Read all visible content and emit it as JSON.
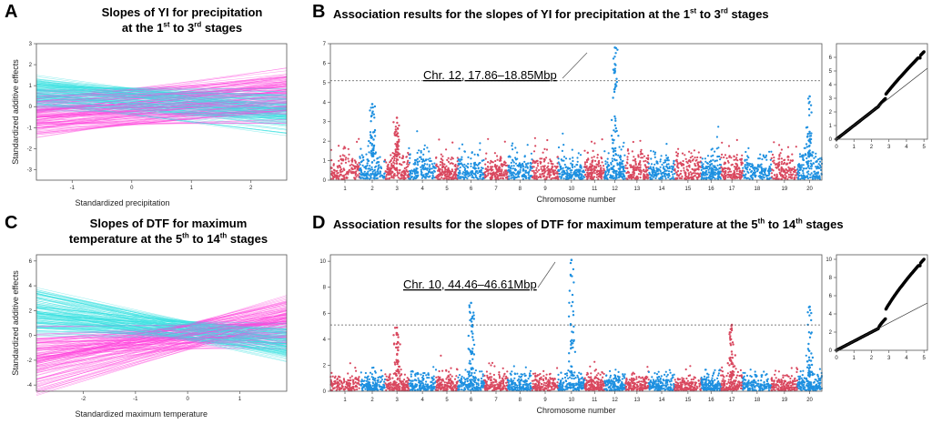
{
  "panels": {
    "A": {
      "letter": "A",
      "title_line1": "Slopes of YI for precipitation",
      "title_line2_pre": "at the 1",
      "title_line2_sup1": "st",
      "title_line2_mid": " to 3",
      "title_line2_sup2": "rd",
      "title_line2_post": " stages"
    },
    "B": {
      "letter": "B",
      "title_pre": "Association results for the slopes of YI for precipitation at the 1",
      "title_sup1": "st",
      "title_mid": " to 3",
      "title_sup2": "rd",
      "title_post": " stages"
    },
    "C": {
      "letter": "C",
      "title_line1": "Slopes of DTF for maximum",
      "title_line2_pre": "temperature at the 5",
      "title_line2_sup1": "th",
      "title_line2_mid": " to 14",
      "title_line2_sup2": "th",
      "title_line2_post": " stages"
    },
    "D": {
      "letter": "D",
      "title_pre": "Association results for the slopes of DTF for maximum temperature at the 5",
      "title_sup1": "th",
      "title_mid": " to 14",
      "title_sup2": "th",
      "title_post": " stages"
    }
  },
  "colors": {
    "red": "#d9485f",
    "blue": "#1e90e0",
    "pink": "#ff44dd",
    "cyan": "#33e0e0",
    "black": "#000000"
  },
  "chart_data": [
    {
      "id": "A",
      "type": "line",
      "title": "Slopes of YI for precipitation at the 1st to 3rd stages",
      "xlabel": "Standardized precipitation",
      "ylabel": "Standardized additive effects",
      "xlim": [
        -1.6,
        2.6
      ],
      "ylim": [
        -3.5,
        3
      ],
      "xticks": [
        -1,
        0,
        1,
        2
      ],
      "yticks": [
        -3,
        -2,
        -1,
        0,
        1,
        2,
        3
      ],
      "series": [
        {
          "name": "positive slopes",
          "color": "#ff44dd",
          "intercept_range": [
            -0.9,
            0.9
          ],
          "slope_range": [
            0.0,
            0.45
          ]
        },
        {
          "name": "negative slopes",
          "color": "#33e0e0",
          "intercept_range": [
            -0.4,
            0.9
          ],
          "slope_range": [
            -0.4,
            0.0
          ]
        }
      ]
    },
    {
      "id": "C",
      "type": "line",
      "title": "Slopes of DTF for maximum temperature at the 5th to 14th stages",
      "xlabel": "Standardized maximum temperature",
      "ylabel": "Standardized additive effects",
      "xlim": [
        -2.9,
        1.9
      ],
      "ylim": [
        -4.5,
        6.5
      ],
      "xticks": [
        -2,
        -1,
        0,
        1
      ],
      "yticks": [
        -4,
        -2,
        0,
        2,
        4,
        6
      ],
      "series": [
        {
          "name": "positive slopes",
          "color": "#ff44dd",
          "intercept_range": [
            -1.2,
            1.0
          ],
          "slope_range": [
            0.0,
            1.3
          ]
        },
        {
          "name": "negative slopes",
          "color": "#33e0e0",
          "intercept_range": [
            -0.4,
            1.2
          ],
          "slope_range": [
            -1.0,
            0.0
          ]
        }
      ]
    },
    {
      "id": "B",
      "type": "scatter",
      "subtype": "manhattan",
      "title": "Association results for the slopes of YI for precipitation at the 1st to 3rd stages",
      "xlabel": "Chromosome number",
      "ylabel": "",
      "ylim": [
        0,
        7
      ],
      "yticks": [
        0,
        1,
        2,
        3,
        4,
        5,
        6,
        7
      ],
      "threshold": 5.1,
      "chromosomes": [
        "1",
        "2",
        "3",
        "4",
        "5",
        "6",
        "7",
        "8",
        "9",
        "10",
        "11",
        "12",
        "13",
        "14",
        "15",
        "16",
        "17",
        "18",
        "19",
        "20"
      ],
      "chrom_sizes": [
        56,
        49,
        46,
        52,
        42,
        51,
        45,
        47,
        50,
        51,
        38,
        40,
        45,
        50,
        51,
        38,
        42,
        55,
        50,
        47
      ],
      "peaks": [
        {
          "chr": 12,
          "max": 6.8
        },
        {
          "chr": 2,
          "max": 3.9
        },
        {
          "chr": 3,
          "max": 3.2
        },
        {
          "chr": 20,
          "max": 4.3
        }
      ],
      "annotation": "Chr. 12, 17.86–18.85Mbp"
    },
    {
      "id": "B-qq",
      "type": "scatter",
      "subtype": "qq",
      "xlim": [
        0,
        5.2
      ],
      "ylim": [
        0,
        7
      ],
      "xticks": [
        0,
        1,
        2,
        3,
        4,
        5
      ],
      "yticks": [
        0,
        1,
        2,
        3,
        4,
        5,
        6
      ]
    },
    {
      "id": "D",
      "type": "scatter",
      "subtype": "manhattan",
      "title": "Association results for the slopes of DTF for maximum temperature at the 5th to 14th stages",
      "xlabel": "Chromosome number",
      "ylabel": "",
      "ylim": [
        0,
        10.5
      ],
      "yticks": [
        0,
        2,
        4,
        6,
        8,
        10
      ],
      "threshold": 5.1,
      "chromosomes": [
        "1",
        "2",
        "3",
        "4",
        "5",
        "6",
        "7",
        "8",
        "9",
        "10",
        "11",
        "12",
        "13",
        "14",
        "15",
        "16",
        "17",
        "18",
        "19",
        "20"
      ],
      "chrom_sizes": [
        56,
        49,
        46,
        52,
        42,
        51,
        45,
        47,
        50,
        51,
        38,
        40,
        45,
        50,
        51,
        38,
        42,
        55,
        50,
        47
      ],
      "peaks": [
        {
          "chr": 10,
          "max": 10.1
        },
        {
          "chr": 6,
          "max": 6.8
        },
        {
          "chr": 3,
          "max": 4.9
        },
        {
          "chr": 17,
          "max": 5.1
        },
        {
          "chr": 20,
          "max": 6.5
        }
      ],
      "annotation": "Chr. 10, 44.46–46.61Mbp"
    },
    {
      "id": "D-qq",
      "type": "scatter",
      "subtype": "qq",
      "xlim": [
        0,
        5.2
      ],
      "ylim": [
        0,
        10.5
      ],
      "xticks": [
        0,
        1,
        2,
        3,
        4,
        5
      ],
      "yticks": [
        0,
        2,
        4,
        6,
        8,
        10
      ]
    }
  ]
}
